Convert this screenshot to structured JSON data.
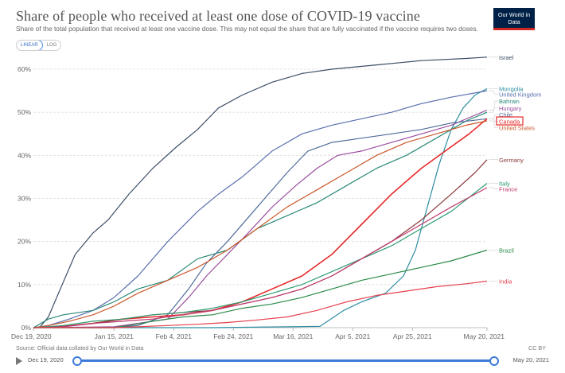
{
  "header": {
    "title": "Share of people who received at least one dose of COVID-19 vaccine",
    "subtitle": "Share of the total population that received at least one vaccine dose. This may not equal the share that are fully vaccinated if the vaccine requires two doses.",
    "logo_text": "Our World in Data"
  },
  "scale_toggle": {
    "linear": "LINEAR",
    "log": "LOG"
  },
  "footer": {
    "source": "Source: Official data collated by Our World in Data",
    "license": "CC BY"
  },
  "timeline": {
    "start": "Dec 19, 2020",
    "end": "May 20, 2021"
  },
  "colors": {
    "highlight": "#e8292a",
    "grid": "#dddddd",
    "timeline": "#3d7bd9"
  },
  "chart_data": {
    "type": "line",
    "title": "Share of people who received at least one dose of COVID-19 vaccine",
    "xlabel": "",
    "ylabel": "",
    "x_ticks": [
      "Dec 19, 2020",
      "Jan 15, 2021",
      "Feb 4, 2021",
      "Feb 24, 2021",
      "Mar 16, 2021",
      "Apr 5, 2021",
      "Apr 25, 2021",
      "May 20, 2021"
    ],
    "x_tick_days": [
      0,
      27,
      47,
      67,
      87,
      107,
      127,
      152
    ],
    "x_range": [
      0,
      152
    ],
    "y_ticks": [
      "0%",
      "10%",
      "20%",
      "30%",
      "40%",
      "50%",
      "60%"
    ],
    "ylim": [
      0,
      60
    ],
    "grid": true,
    "highlighted": "Canada",
    "series": [
      {
        "name": "Israel",
        "color": "#3c4e66",
        "points": [
          [
            2,
            0
          ],
          [
            5,
            2.5
          ],
          [
            9,
            9
          ],
          [
            14,
            17
          ],
          [
            20,
            22
          ],
          [
            25,
            25
          ],
          [
            32,
            31
          ],
          [
            40,
            37
          ],
          [
            48,
            42
          ],
          [
            55,
            46
          ],
          [
            62,
            51
          ],
          [
            70,
            54
          ],
          [
            80,
            57
          ],
          [
            90,
            59
          ],
          [
            100,
            60
          ],
          [
            115,
            61
          ],
          [
            130,
            62
          ],
          [
            145,
            62.5
          ],
          [
            152,
            62.8
          ]
        ]
      },
      {
        "name": "Mongolia",
        "color": "#2e8da0",
        "points": [
          [
            0,
            0
          ],
          [
            60,
            0
          ],
          [
            96,
            0.3
          ],
          [
            104,
            4
          ],
          [
            110,
            6
          ],
          [
            118,
            8
          ],
          [
            124,
            12
          ],
          [
            128,
            18
          ],
          [
            132,
            28
          ],
          [
            136,
            38
          ],
          [
            140,
            46
          ],
          [
            144,
            51
          ],
          [
            148,
            54
          ],
          [
            152,
            55.5
          ]
        ]
      },
      {
        "name": "United Kingdom",
        "color": "#5b6fae",
        "points": [
          [
            0,
            0
          ],
          [
            5,
            0.5
          ],
          [
            12,
            2
          ],
          [
            20,
            4
          ],
          [
            27,
            7
          ],
          [
            35,
            12
          ],
          [
            45,
            20
          ],
          [
            55,
            27
          ],
          [
            62,
            31
          ],
          [
            70,
            35
          ],
          [
            80,
            41
          ],
          [
            90,
            45
          ],
          [
            100,
            47
          ],
          [
            110,
            48.5
          ],
          [
            120,
            50
          ],
          [
            130,
            52
          ],
          [
            140,
            53.5
          ],
          [
            152,
            55
          ]
        ]
      },
      {
        "name": "Bahrain",
        "color": "#2a8a78",
        "points": [
          [
            0,
            0
          ],
          [
            5,
            2
          ],
          [
            10,
            3
          ],
          [
            20,
            4
          ],
          [
            27,
            6
          ],
          [
            35,
            9
          ],
          [
            45,
            11
          ],
          [
            55,
            16
          ],
          [
            65,
            18
          ],
          [
            75,
            23
          ],
          [
            85,
            26
          ],
          [
            95,
            29
          ],
          [
            105,
            33
          ],
          [
            115,
            37
          ],
          [
            125,
            40
          ],
          [
            135,
            44
          ],
          [
            145,
            48
          ],
          [
            152,
            50
          ]
        ]
      },
      {
        "name": "Hungary",
        "color": "#9b4f9e",
        "points": [
          [
            0,
            0
          ],
          [
            27,
            0.2
          ],
          [
            35,
            1
          ],
          [
            45,
            2
          ],
          [
            52,
            7
          ],
          [
            58,
            12
          ],
          [
            65,
            17
          ],
          [
            72,
            22
          ],
          [
            80,
            28
          ],
          [
            88,
            33
          ],
          [
            95,
            37
          ],
          [
            102,
            40
          ],
          [
            110,
            41
          ],
          [
            120,
            43
          ],
          [
            130,
            45
          ],
          [
            140,
            47
          ],
          [
            152,
            50.5
          ]
        ]
      },
      {
        "name": "Chile",
        "color": "#4f6d9b",
        "points": [
          [
            0,
            0
          ],
          [
            27,
            0
          ],
          [
            35,
            0.5
          ],
          [
            45,
            3
          ],
          [
            52,
            9
          ],
          [
            58,
            15
          ],
          [
            65,
            20
          ],
          [
            75,
            28
          ],
          [
            85,
            36
          ],
          [
            92,
            41
          ],
          [
            100,
            43
          ],
          [
            110,
            44
          ],
          [
            120,
            45
          ],
          [
            130,
            46
          ],
          [
            140,
            47.5
          ],
          [
            152,
            48.5
          ]
        ]
      },
      {
        "name": "Canada",
        "color": "#e8292a",
        "points": [
          [
            0,
            0
          ],
          [
            10,
            0.3
          ],
          [
            20,
            1
          ],
          [
            30,
            2
          ],
          [
            40,
            2.5
          ],
          [
            50,
            3
          ],
          [
            60,
            4
          ],
          [
            70,
            6
          ],
          [
            80,
            9
          ],
          [
            90,
            12
          ],
          [
            100,
            17
          ],
          [
            110,
            24
          ],
          [
            120,
            31
          ],
          [
            130,
            37
          ],
          [
            140,
            42
          ],
          [
            146,
            45
          ],
          [
            152,
            48.5
          ]
        ]
      },
      {
        "name": "United States",
        "color": "#c9582b",
        "points": [
          [
            0,
            0
          ],
          [
            5,
            0.5
          ],
          [
            12,
            1.5
          ],
          [
            20,
            3
          ],
          [
            27,
            5
          ],
          [
            35,
            8
          ],
          [
            45,
            11
          ],
          [
            55,
            14
          ],
          [
            65,
            18
          ],
          [
            75,
            23
          ],
          [
            85,
            28
          ],
          [
            95,
            32
          ],
          [
            105,
            36
          ],
          [
            115,
            40
          ],
          [
            125,
            43
          ],
          [
            135,
            45
          ],
          [
            145,
            47
          ],
          [
            152,
            48
          ]
        ]
      },
      {
        "name": "Germany",
        "color": "#8a3a3d",
        "points": [
          [
            0,
            0
          ],
          [
            10,
            0.3
          ],
          [
            20,
            1
          ],
          [
            30,
            2
          ],
          [
            40,
            3
          ],
          [
            50,
            3.5
          ],
          [
            60,
            4
          ],
          [
            70,
            5.5
          ],
          [
            80,
            7
          ],
          [
            90,
            9
          ],
          [
            100,
            12
          ],
          [
            110,
            16
          ],
          [
            120,
            20
          ],
          [
            130,
            25
          ],
          [
            140,
            31
          ],
          [
            148,
            36
          ],
          [
            152,
            39
          ]
        ]
      },
      {
        "name": "Italy",
        "color": "#2e9b6f",
        "points": [
          [
            0,
            0
          ],
          [
            10,
            0.5
          ],
          [
            20,
            1.5
          ],
          [
            30,
            2
          ],
          [
            40,
            3
          ],
          [
            50,
            3.5
          ],
          [
            60,
            4.5
          ],
          [
            70,
            6
          ],
          [
            80,
            8
          ],
          [
            90,
            10
          ],
          [
            100,
            13
          ],
          [
            110,
            16
          ],
          [
            120,
            19
          ],
          [
            130,
            23
          ],
          [
            140,
            27
          ],
          [
            152,
            33.5
          ]
        ]
      },
      {
        "name": "France",
        "color": "#c03a6f",
        "points": [
          [
            0,
            0
          ],
          [
            10,
            0.2
          ],
          [
            20,
            1
          ],
          [
            30,
            1.5
          ],
          [
            40,
            2
          ],
          [
            50,
            3
          ],
          [
            60,
            4
          ],
          [
            70,
            5.5
          ],
          [
            80,
            7
          ],
          [
            90,
            9
          ],
          [
            100,
            12
          ],
          [
            110,
            16
          ],
          [
            120,
            20
          ],
          [
            130,
            24
          ],
          [
            140,
            28
          ],
          [
            152,
            32.5
          ]
        ]
      },
      {
        "name": "Brazil",
        "color": "#2b8a4a",
        "points": [
          [
            0,
            0
          ],
          [
            27,
            0
          ],
          [
            32,
            0.5
          ],
          [
            40,
            1.5
          ],
          [
            50,
            2.5
          ],
          [
            60,
            3
          ],
          [
            70,
            4.5
          ],
          [
            80,
            5.5
          ],
          [
            90,
            7
          ],
          [
            100,
            9
          ],
          [
            110,
            11
          ],
          [
            120,
            12.5
          ],
          [
            130,
            14
          ],
          [
            140,
            15.5
          ],
          [
            152,
            18
          ]
        ]
      },
      {
        "name": "India",
        "color": "#e6404e",
        "points": [
          [
            0,
            0
          ],
          [
            27,
            0
          ],
          [
            35,
            0.2
          ],
          [
            45,
            0.5
          ],
          [
            55,
            0.8
          ],
          [
            65,
            1.2
          ],
          [
            75,
            1.8
          ],
          [
            85,
            2.5
          ],
          [
            95,
            4
          ],
          [
            105,
            6
          ],
          [
            115,
            7.5
          ],
          [
            125,
            8.5
          ],
          [
            135,
            9.5
          ],
          [
            145,
            10.2
          ],
          [
            152,
            10.8
          ]
        ]
      }
    ],
    "label_order_y": [
      62.8,
      55.5,
      54.2,
      52.6,
      51.0,
      49.5,
      47.9,
      46.4,
      39.0,
      33.5,
      32.2,
      18.0,
      10.8
    ]
  }
}
